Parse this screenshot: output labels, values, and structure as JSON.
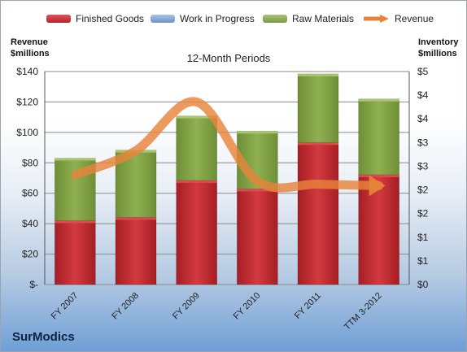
{
  "legend": [
    {
      "label": "Finished Goods",
      "color": "#c0272d"
    },
    {
      "label": "Work in Progress",
      "color": "#7a9fd0"
    },
    {
      "label": "Raw Materials",
      "color": "#86a84a"
    },
    {
      "label": "Revenue",
      "color": "#e8843a"
    }
  ],
  "left_axis_title": "Revenue\n$millions",
  "right_axis_title": "Inventory\n$millions",
  "company": "SurModics",
  "chart_data": {
    "type": "bar",
    "title": "12-Month Periods",
    "stacked": true,
    "grid": true,
    "legend_position": "top",
    "categories": [
      "FY 2007",
      "FY 2008",
      "FY 2009",
      "FY 2010",
      "FY 2011",
      "TTM 3-2012"
    ],
    "series": [
      {
        "name": "Finished Goods",
        "axis": "right",
        "values": [
          1.35,
          1.42,
          2.2,
          2.02,
          3.0,
          2.32
        ],
        "color": "#c0272d"
      },
      {
        "name": "Work in Progress",
        "axis": "right",
        "values": [
          0,
          0,
          0,
          0,
          0,
          0
        ],
        "color": "#7a9fd0"
      },
      {
        "name": "Raw Materials",
        "axis": "right",
        "values": [
          1.32,
          1.42,
          1.36,
          1.22,
          1.45,
          1.6
        ],
        "color": "#86a84a"
      },
      {
        "name": "Revenue",
        "axis": "left",
        "type": "line",
        "values": [
          72,
          88,
          120,
          68,
          66,
          65
        ],
        "color": "#e8843a"
      }
    ],
    "y_left": {
      "label": "Revenue $millions",
      "ylim": [
        0,
        140
      ],
      "ticks": [
        0,
        20,
        40,
        60,
        80,
        100,
        120,
        140
      ],
      "tick_labels": [
        "$-",
        "$20",
        "$40",
        "$60",
        "$80",
        "$100",
        "$120",
        "$140"
      ]
    },
    "y_right": {
      "label": "Inventory $millions",
      "ylim": [
        0,
        4.5
      ],
      "ticks": [
        0,
        0.5,
        1,
        1.5,
        2,
        2.5,
        3,
        3.5,
        4,
        4.5
      ],
      "tick_labels": [
        "$0",
        "$1",
        "$1",
        "$2",
        "$2",
        "$3",
        "$3",
        "$4",
        "$4",
        "$5"
      ]
    }
  }
}
